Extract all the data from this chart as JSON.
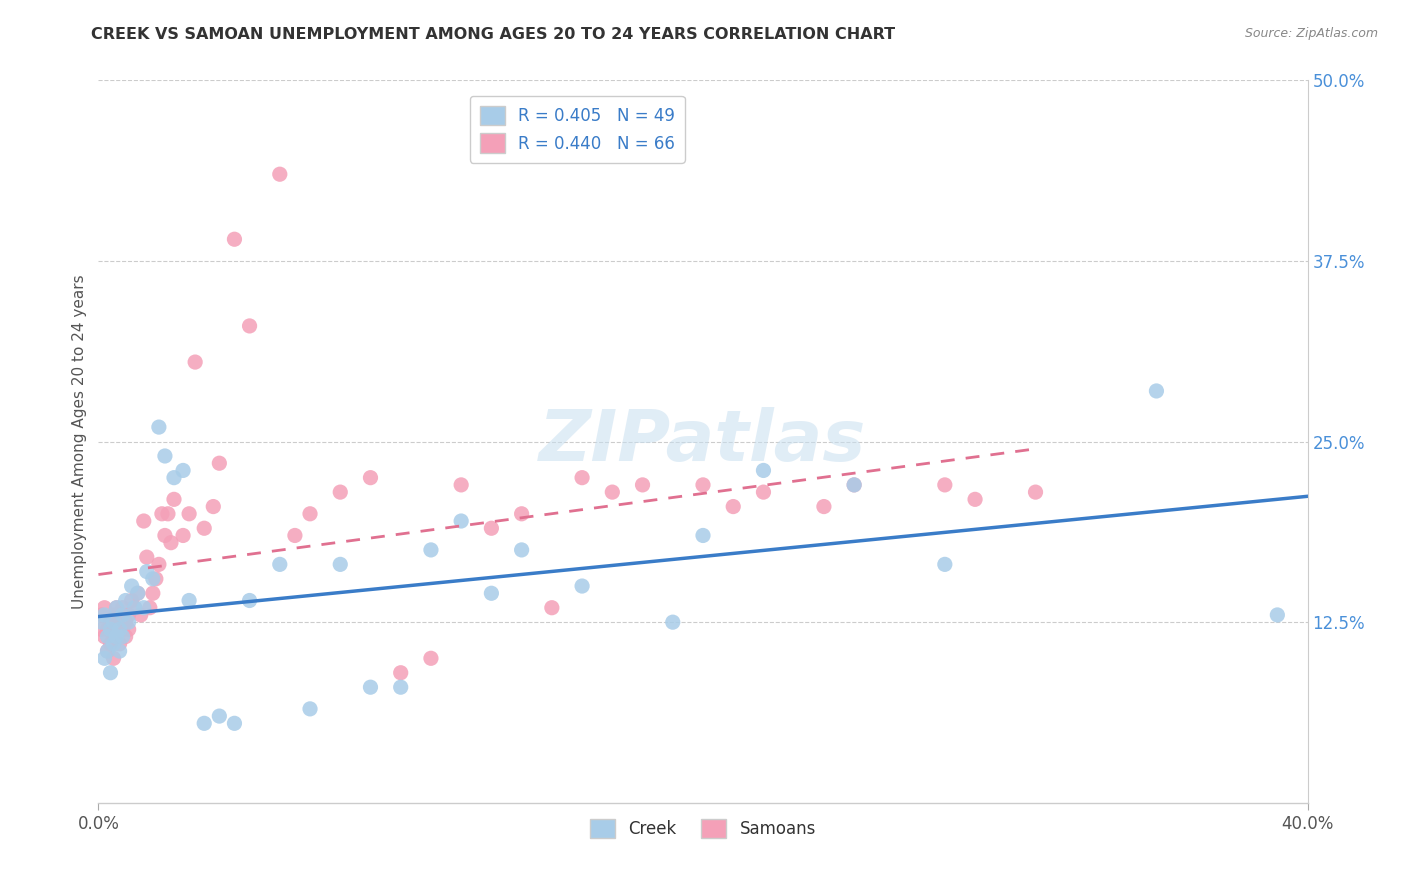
{
  "title": "CREEK VS SAMOAN UNEMPLOYMENT AMONG AGES 20 TO 24 YEARS CORRELATION CHART",
  "source": "Source: ZipAtlas.com",
  "ylabel": "Unemployment Among Ages 20 to 24 years",
  "creek_R": 0.405,
  "creek_N": 49,
  "samoan_R": 0.44,
  "samoan_N": 66,
  "creek_color": "#a8cce8",
  "samoan_color": "#f4a0b8",
  "creek_line_color": "#3a7cc8",
  "samoan_line_color": "#e07090",
  "legend_label_creek": "Creek",
  "legend_label_samoan": "Samoans",
  "xlim": [
    0.0,
    0.4
  ],
  "ylim": [
    0.0,
    0.5
  ],
  "creek_x": [
    0.001,
    0.002,
    0.002,
    0.003,
    0.003,
    0.004,
    0.004,
    0.005,
    0.005,
    0.006,
    0.006,
    0.007,
    0.007,
    0.008,
    0.008,
    0.009,
    0.01,
    0.011,
    0.012,
    0.013,
    0.015,
    0.016,
    0.018,
    0.02,
    0.022,
    0.025,
    0.028,
    0.03,
    0.035,
    0.04,
    0.045,
    0.05,
    0.06,
    0.07,
    0.08,
    0.09,
    0.1,
    0.11,
    0.12,
    0.13,
    0.14,
    0.16,
    0.19,
    0.2,
    0.22,
    0.25,
    0.28,
    0.35,
    0.39
  ],
  "creek_y": [
    0.125,
    0.1,
    0.13,
    0.115,
    0.105,
    0.12,
    0.09,
    0.125,
    0.11,
    0.135,
    0.115,
    0.12,
    0.105,
    0.13,
    0.115,
    0.14,
    0.125,
    0.15,
    0.135,
    0.145,
    0.135,
    0.16,
    0.155,
    0.26,
    0.24,
    0.225,
    0.23,
    0.14,
    0.055,
    0.06,
    0.055,
    0.14,
    0.165,
    0.065,
    0.165,
    0.08,
    0.08,
    0.175,
    0.195,
    0.145,
    0.175,
    0.15,
    0.125,
    0.185,
    0.23,
    0.22,
    0.165,
    0.285,
    0.13
  ],
  "samoan_x": [
    0.001,
    0.001,
    0.002,
    0.002,
    0.003,
    0.003,
    0.004,
    0.004,
    0.005,
    0.005,
    0.005,
    0.006,
    0.006,
    0.007,
    0.007,
    0.008,
    0.008,
    0.009,
    0.009,
    0.01,
    0.01,
    0.011,
    0.012,
    0.013,
    0.014,
    0.015,
    0.016,
    0.017,
    0.018,
    0.019,
    0.02,
    0.021,
    0.022,
    0.023,
    0.024,
    0.025,
    0.028,
    0.03,
    0.032,
    0.035,
    0.038,
    0.04,
    0.045,
    0.05,
    0.06,
    0.065,
    0.07,
    0.08,
    0.09,
    0.1,
    0.11,
    0.12,
    0.13,
    0.14,
    0.15,
    0.16,
    0.17,
    0.18,
    0.2,
    0.21,
    0.22,
    0.24,
    0.25,
    0.28,
    0.29,
    0.31
  ],
  "samoan_y": [
    0.13,
    0.12,
    0.135,
    0.115,
    0.12,
    0.105,
    0.125,
    0.11,
    0.13,
    0.115,
    0.1,
    0.135,
    0.12,
    0.125,
    0.11,
    0.135,
    0.12,
    0.125,
    0.115,
    0.13,
    0.12,
    0.14,
    0.135,
    0.145,
    0.13,
    0.195,
    0.17,
    0.135,
    0.145,
    0.155,
    0.165,
    0.2,
    0.185,
    0.2,
    0.18,
    0.21,
    0.185,
    0.2,
    0.305,
    0.19,
    0.205,
    0.235,
    0.39,
    0.33,
    0.435,
    0.185,
    0.2,
    0.215,
    0.225,
    0.09,
    0.1,
    0.22,
    0.19,
    0.2,
    0.135,
    0.225,
    0.215,
    0.22,
    0.22,
    0.205,
    0.215,
    0.205,
    0.22,
    0.22,
    0.21,
    0.215
  ]
}
